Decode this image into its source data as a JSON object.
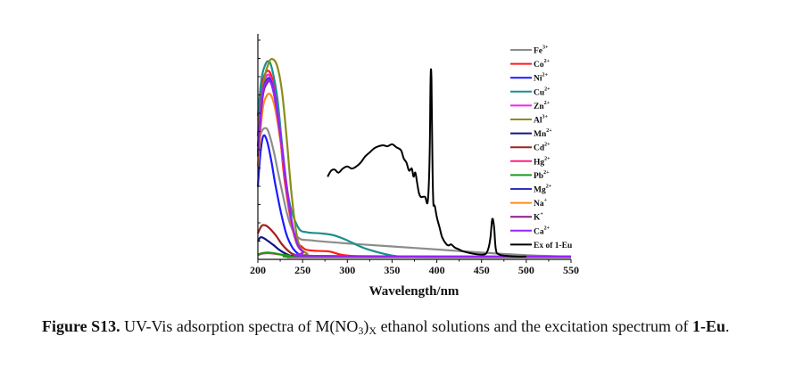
{
  "chart_data": {
    "type": "line",
    "title": "",
    "xlabel": "Wavelength/nm",
    "ylabel": "",
    "xlim": [
      200,
      550
    ],
    "ylim": [
      0,
      1.0
    ],
    "xticks": [
      200,
      250,
      300,
      350,
      400,
      450,
      500,
      550
    ],
    "y_tick_labels_shown": false,
    "legend_position": "top-right",
    "series": [
      {
        "name": "Fe",
        "charge": "3+",
        "color": "#8c8c8c",
        "x": [
          200,
          204,
          208,
          212,
          218,
          225,
          235,
          245,
          260,
          300,
          350,
          400,
          450,
          500,
          550
        ],
        "y": [
          0.55,
          0.62,
          0.64,
          0.62,
          0.52,
          0.37,
          0.18,
          0.1,
          0.085,
          0.07,
          0.055,
          0.04,
          0.025,
          0.012,
          0.005
        ]
      },
      {
        "name": "Co",
        "charge": "2+",
        "color": "#ff1a1a",
        "x": [
          200,
          205,
          210,
          215,
          220,
          225,
          230,
          240,
          250,
          260,
          280,
          300,
          350,
          550
        ],
        "y": [
          0.6,
          0.85,
          0.92,
          0.9,
          0.8,
          0.6,
          0.38,
          0.12,
          0.05,
          0.035,
          0.03,
          0.01,
          0.005,
          0.005
        ]
      },
      {
        "name": "Ni",
        "charge": "2+",
        "color": "#1a1aff",
        "x": [
          200,
          203,
          206,
          210,
          215,
          220,
          228,
          235,
          245,
          260,
          300,
          550
        ],
        "y": [
          0.35,
          0.52,
          0.6,
          0.58,
          0.48,
          0.35,
          0.18,
          0.08,
          0.02,
          0.008,
          0.005,
          0.005
        ]
      },
      {
        "name": "Cu",
        "charge": "2+",
        "color": "#1a9090",
        "x": [
          200,
          204,
          208,
          212,
          216,
          222,
          228,
          235,
          245,
          255,
          270,
          285,
          300,
          320,
          350,
          370,
          400,
          550
        ],
        "y": [
          0.7,
          0.88,
          0.95,
          0.97,
          0.93,
          0.78,
          0.52,
          0.28,
          0.15,
          0.125,
          0.12,
          0.11,
          0.085,
          0.045,
          0.01,
          0.003,
          0.002,
          0.002
        ]
      },
      {
        "name": "Zn",
        "charge": "2+",
        "color": "#ff22ee",
        "x": [
          200,
          205,
          210,
          215,
          220,
          226,
          232,
          240,
          250,
          270,
          550
        ],
        "y": [
          0.55,
          0.82,
          0.9,
          0.88,
          0.78,
          0.58,
          0.36,
          0.13,
          0.03,
          0.008,
          0.005
        ]
      },
      {
        "name": "Al",
        "charge": "3+",
        "color": "#8c8c1a",
        "x": [
          200,
          206,
          212,
          217,
          222,
          227,
          232,
          238,
          245,
          255,
          270,
          550
        ],
        "y": [
          0.6,
          0.85,
          0.96,
          0.98,
          0.94,
          0.82,
          0.6,
          0.3,
          0.08,
          0.02,
          0.006,
          0.005
        ]
      },
      {
        "name": "Mn",
        "charge": "2+",
        "color": "#141480",
        "x": [
          200,
          203,
          207,
          212,
          218,
          225,
          235,
          245,
          260,
          550
        ],
        "y": [
          0.08,
          0.1,
          0.095,
          0.08,
          0.06,
          0.035,
          0.012,
          0.005,
          0.003,
          0.003
        ]
      },
      {
        "name": "Cd",
        "charge": "2+",
        "color": "#a02020",
        "x": [
          200,
          204,
          208,
          213,
          220,
          228,
          238,
          250,
          260,
          550
        ],
        "y": [
          0.12,
          0.155,
          0.16,
          0.145,
          0.11,
          0.06,
          0.02,
          0.006,
          0.003,
          0.003
        ]
      },
      {
        "name": "Hg",
        "charge": "2+",
        "color": "#ff2080",
        "x": [
          200,
          205,
          212,
          220,
          235,
          260,
          550
        ],
        "y": [
          0.012,
          0.02,
          0.022,
          0.018,
          0.01,
          0.004,
          0.003
        ]
      },
      {
        "name": "Pb",
        "charge": "2+",
        "color": "#1a9a1a",
        "x": [
          200,
          205,
          212,
          220,
          235,
          260,
          550
        ],
        "y": [
          0.015,
          0.022,
          0.025,
          0.02,
          0.01,
          0.004,
          0.003
        ]
      },
      {
        "name": "Mg",
        "charge": "2+",
        "color": "#3030c0",
        "x": [
          200,
          205,
          210,
          215,
          220,
          226,
          232,
          240,
          250,
          270,
          550
        ],
        "y": [
          0.55,
          0.8,
          0.88,
          0.87,
          0.77,
          0.57,
          0.35,
          0.12,
          0.03,
          0.007,
          0.004
        ]
      },
      {
        "name": "Na",
        "charge": "+",
        "color": "#ff8c1a",
        "x": [
          200,
          205,
          210,
          215,
          220,
          226,
          232,
          240,
          250,
          270,
          550
        ],
        "y": [
          0.45,
          0.72,
          0.8,
          0.8,
          0.72,
          0.55,
          0.34,
          0.12,
          0.03,
          0.007,
          0.004
        ]
      },
      {
        "name": "K",
        "charge": "+",
        "color": "#8a1a8a",
        "x": [
          200,
          205,
          210,
          215,
          220,
          226,
          232,
          240,
          250,
          270,
          550
        ],
        "y": [
          0.5,
          0.78,
          0.86,
          0.86,
          0.76,
          0.57,
          0.35,
          0.13,
          0.03,
          0.007,
          0.004
        ]
      },
      {
        "name": "Ca",
        "charge": "2+",
        "color": "#9922ff",
        "x": [
          200,
          205,
          210,
          215,
          220,
          226,
          232,
          240,
          250,
          270,
          550
        ],
        "y": [
          0.52,
          0.8,
          0.87,
          0.86,
          0.76,
          0.57,
          0.35,
          0.13,
          0.03,
          0.008,
          0.005
        ]
      },
      {
        "name": "Ex of 1-Eu",
        "charge": "",
        "color": "#000000",
        "x": [
          278,
          282,
          286,
          290,
          295,
          300,
          305,
          310,
          315,
          320,
          325,
          330,
          335,
          340,
          345,
          350,
          355,
          360,
          363,
          366,
          369,
          372,
          374,
          376,
          378,
          380,
          382,
          384,
          387,
          390,
          392,
          393,
          394,
          395,
          396,
          397,
          398,
          400,
          403,
          406,
          410,
          413,
          416,
          420,
          425,
          430,
          440,
          450,
          455,
          458,
          460,
          462,
          464,
          466,
          470,
          480,
          490,
          500
        ],
        "y": [
          0.4,
          0.43,
          0.435,
          0.42,
          0.44,
          0.45,
          0.44,
          0.45,
          0.47,
          0.5,
          0.52,
          0.54,
          0.55,
          0.555,
          0.55,
          0.56,
          0.545,
          0.53,
          0.49,
          0.47,
          0.43,
          0.44,
          0.4,
          0.42,
          0.37,
          0.32,
          0.3,
          0.3,
          0.3,
          0.28,
          0.5,
          0.88,
          0.88,
          0.5,
          0.28,
          0.26,
          0.25,
          0.2,
          0.15,
          0.1,
          0.07,
          0.06,
          0.065,
          0.05,
          0.04,
          0.03,
          0.02,
          0.015,
          0.02,
          0.05,
          0.1,
          0.19,
          0.15,
          0.04,
          0.015,
          0.008,
          0.005,
          0.005
        ]
      }
    ]
  },
  "caption": {
    "label": "Figure S13.",
    "text_before_sub": " UV-Vis adsorption spectra of M(NO",
    "sub": "3",
    "text_after_sub": ")",
    "sub_x": "X",
    "text_end": " ethanol solutions and the excitation spectrum of ",
    "compound": "1-Eu",
    "period": "."
  }
}
